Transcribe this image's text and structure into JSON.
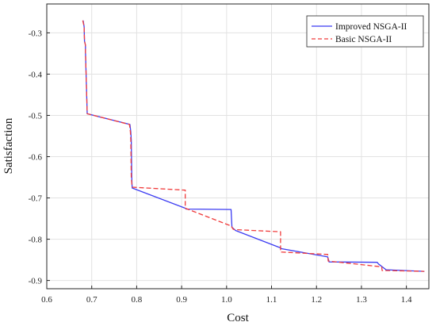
{
  "chart_data": {
    "type": "line",
    "title": "",
    "xlabel": "Cost",
    "ylabel": "Satisfaction",
    "xlim": [
      0.6,
      1.45
    ],
    "ylim": [
      -0.92,
      -0.23
    ],
    "xticks": [
      0.6,
      0.7,
      0.8,
      0.9,
      1.0,
      1.1,
      1.2,
      1.3,
      1.4
    ],
    "xtick_labels": [
      "0.6",
      "0.7",
      "0.8",
      "0.9",
      "1.0",
      "1.1",
      "1.2",
      "1.3",
      "1.4"
    ],
    "yticks": [
      -0.3,
      -0.4,
      -0.5,
      -0.6,
      -0.7,
      -0.8,
      -0.9
    ],
    "ytick_labels": [
      "-0.3",
      "-0.4",
      "-0.5",
      "-0.6",
      "-0.7",
      "-0.8",
      "-0.9"
    ],
    "grid": true,
    "legend_position": "top-right",
    "series": [
      {
        "name": "Improved NSGA-II",
        "color": "#3b3bf2",
        "dash": "solid",
        "x": [
          0.681,
          0.683,
          0.684,
          0.686,
          0.686,
          0.688,
          0.69,
          0.785,
          0.787,
          0.788,
          0.789,
          0.79,
          0.908,
          0.91,
          1.01,
          1.012,
          1.02,
          1.12,
          1.122,
          1.225,
          1.228,
          1.335,
          1.338,
          1.355,
          1.44
        ],
        "y": [
          -0.27,
          -0.285,
          -0.32,
          -0.33,
          -0.345,
          -0.42,
          -0.496,
          -0.522,
          -0.54,
          -0.56,
          -0.65,
          -0.676,
          -0.725,
          -0.727,
          -0.728,
          -0.771,
          -0.779,
          -0.821,
          -0.823,
          -0.843,
          -0.855,
          -0.856,
          -0.86,
          -0.874,
          -0.878
        ]
      },
      {
        "name": "Basic NSGA-II",
        "color": "#f03c3c",
        "dash": "dashed",
        "x": [
          0.68,
          0.683,
          0.684,
          0.686,
          0.686,
          0.688,
          0.69,
          0.784,
          0.786,
          0.787,
          0.788,
          0.79,
          0.908,
          0.908,
          1.01,
          1.015,
          1.023,
          1.12,
          1.12,
          1.225,
          1.226,
          1.345,
          1.346,
          1.36,
          1.44
        ],
        "y": [
          -0.27,
          -0.285,
          -0.32,
          -0.33,
          -0.345,
          -0.42,
          -0.496,
          -0.522,
          -0.54,
          -0.56,
          -0.65,
          -0.674,
          -0.681,
          -0.725,
          -0.768,
          -0.776,
          -0.777,
          -0.782,
          -0.831,
          -0.837,
          -0.853,
          -0.867,
          -0.876,
          -0.876,
          -0.878
        ]
      }
    ]
  }
}
